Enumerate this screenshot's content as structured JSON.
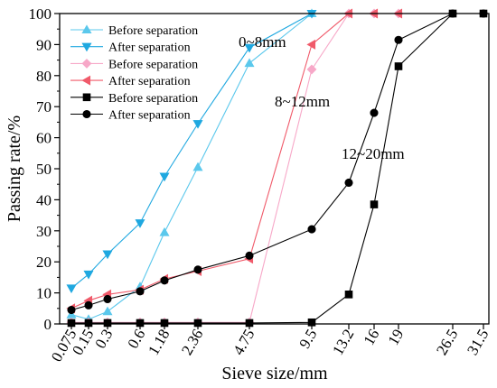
{
  "chart_data": {
    "type": "line",
    "xlabel": "Sieve size/mm",
    "ylabel": "Passing rate/%",
    "ylim": [
      0,
      100
    ],
    "yticks": [
      0,
      10,
      20,
      30,
      40,
      50,
      60,
      70,
      80,
      90,
      100
    ],
    "x_categories": [
      "0.075",
      "0.15",
      "0.3",
      "0.6",
      "1.18",
      "2.36",
      "4.75",
      "9.5",
      "13.2",
      "16",
      "19",
      "26.5",
      "31.5"
    ],
    "grid": false,
    "legend": "top-left",
    "annotations": [
      "0~8mm",
      "8~12mm",
      "12~20mm"
    ],
    "series": [
      {
        "name": "Before separation",
        "group": "0~8mm",
        "marker": "triangle-up",
        "color": "#5bc8ec",
        "values": [
          3.0,
          1.5,
          4.0,
          12.0,
          29.5,
          50.5,
          84.0,
          100,
          null,
          null,
          null,
          null,
          null
        ]
      },
      {
        "name": "After separation",
        "group": "0~8mm",
        "marker": "triangle-down",
        "color": "#1fa8e0",
        "values": [
          11.5,
          16.0,
          22.5,
          32.5,
          47.5,
          64.5,
          89.0,
          100,
          null,
          null,
          null,
          null,
          null
        ]
      },
      {
        "name": "Before separation",
        "group": "8~12mm",
        "marker": "diamond",
        "color": "#f7a8c8",
        "values": [
          0.5,
          0.5,
          0.5,
          0.5,
          0.5,
          0.5,
          0.5,
          82.0,
          100,
          100,
          100,
          null,
          null
        ]
      },
      {
        "name": "After separation",
        "group": "8~12mm",
        "marker": "triangle-left",
        "color": "#f05a6a",
        "values": [
          5.0,
          7.5,
          9.5,
          11.0,
          14.5,
          17.0,
          21.0,
          90.0,
          100,
          100,
          100,
          null,
          null
        ]
      },
      {
        "name": "Before separation",
        "group": "12~20mm",
        "marker": "square",
        "color": "#000000",
        "values": [
          0.3,
          0.3,
          0.3,
          0.3,
          0.3,
          0.3,
          0.3,
          0.5,
          9.5,
          38.5,
          83.0,
          100,
          100
        ]
      },
      {
        "name": "After separation",
        "group": "12~20mm",
        "marker": "circle",
        "color": "#000000",
        "values": [
          4.5,
          6.0,
          8.0,
          10.5,
          14.0,
          17.5,
          22.0,
          30.5,
          45.5,
          68.0,
          91.5,
          100,
          100
        ]
      }
    ]
  }
}
